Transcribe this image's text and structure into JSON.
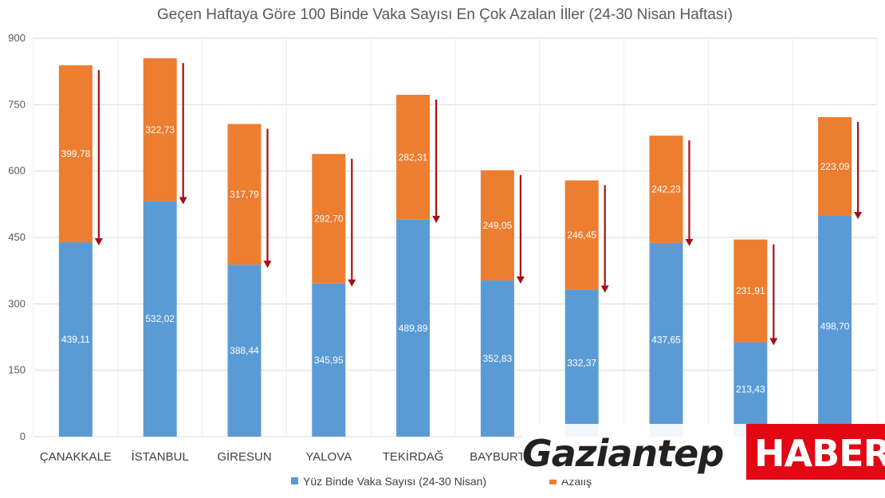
{
  "chart_data": {
    "type": "bar",
    "stacked": true,
    "title": "Geçen Haftaya Göre 100 Binde Vaka Sayısı En Çok Azalan İller (24-30 Nisan Haftası)",
    "categories": [
      "ÇANAKKALE",
      "İSTANBUL",
      "GİRESUN",
      "YALOVA",
      "TEKİRDAĞ",
      "BAYBURT",
      "?",
      "?",
      "?",
      "?"
    ],
    "series": [
      {
        "name": "Yüz Binde Vaka Sayısı (24-30 Nisan)",
        "color": "#5B9BD5",
        "values": [
          439.11,
          532.02,
          388.44,
          345.95,
          489.89,
          352.83,
          332.37,
          437.65,
          213.43,
          498.7
        ],
        "labels": [
          "439,11",
          "532,02",
          "388,44",
          "345,95",
          "489,89",
          "352,83",
          "332,37",
          "437,65",
          "213,43",
          "498,70"
        ]
      },
      {
        "name": "Azalış",
        "color": "#ED7D31",
        "values": [
          399.78,
          322.73,
          317.79,
          292.7,
          282.31,
          249.05,
          246.45,
          242.23,
          231.91,
          223.09
        ],
        "labels": [
          "399,78",
          "322,73",
          "317,79",
          "292,70",
          "282,31",
          "249,05",
          "246,45",
          "242,23",
          "231,91",
          "223,09"
        ]
      }
    ],
    "yticks": [
      "0",
      "150",
      "300",
      "450",
      "600",
      "750",
      "900"
    ],
    "ylim": [
      0,
      900
    ],
    "grid": true,
    "legend": "bottom",
    "arrow_color": "#A50F15"
  },
  "watermark": {
    "left": "Gaziantep",
    "right": "HABER",
    "right_bg": "#E30613"
  }
}
